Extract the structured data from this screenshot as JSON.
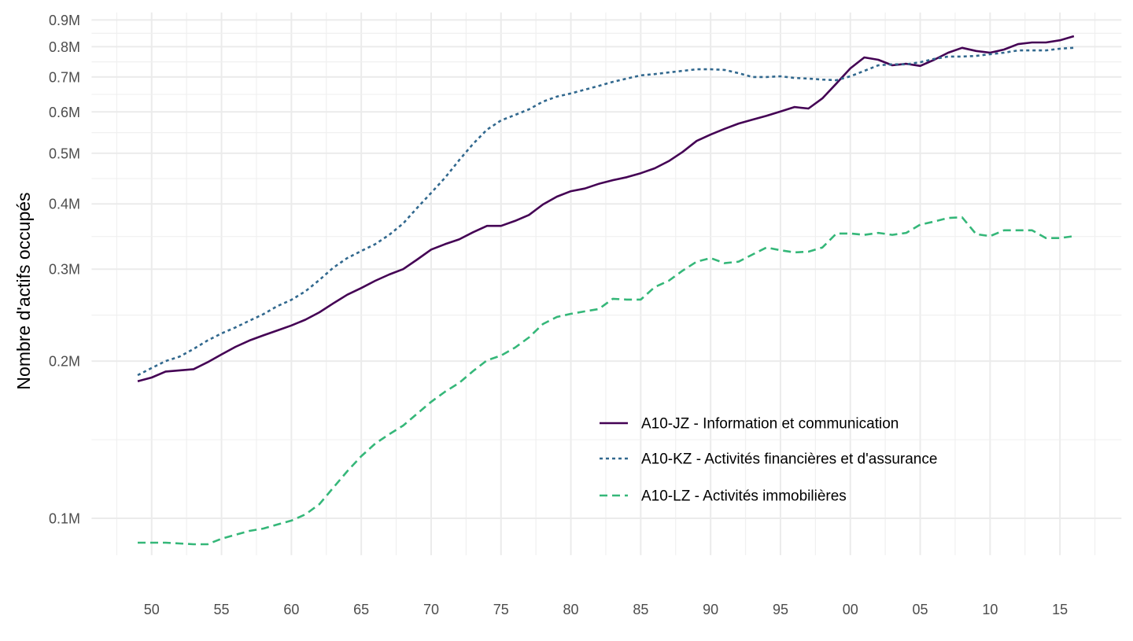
{
  "chart_data": {
    "type": "line",
    "title": "",
    "xlabel": "",
    "ylabel": "Nombre d'actifs occupés",
    "yscale": "log",
    "ylim": [
      0.085,
      0.93
    ],
    "xlim": [
      1945.7,
      2019.4
    ],
    "grid": true,
    "legend_position": "bottom-right (inside)",
    "x_ticks": [
      1950,
      1955,
      1960,
      1965,
      1970,
      1975,
      1980,
      1985,
      1990,
      1995,
      2000,
      2005,
      2010,
      2015
    ],
    "x_tick_labels": [
      "50",
      "55",
      "60",
      "65",
      "70",
      "75",
      "80",
      "85",
      "90",
      "95",
      "00",
      "05",
      "10",
      "15"
    ],
    "y_ticks": [
      0.1,
      0.2,
      0.3,
      0.4,
      0.5,
      0.6,
      0.7,
      0.8,
      0.9
    ],
    "y_tick_labels": [
      "0.1M",
      "0.2M",
      "0.3M",
      "0.4M",
      "0.5M",
      "0.6M",
      "0.7M",
      "0.8M",
      "0.9M"
    ],
    "x_start": 1949,
    "series": [
      {
        "name": "A10-JZ - Information et communication",
        "color": "#440154",
        "dash": "solid",
        "values": [
          0.183,
          0.186,
          0.191,
          0.192,
          0.193,
          0.199,
          0.206,
          0.213,
          0.219,
          0.224,
          0.229,
          0.234,
          0.24,
          0.248,
          0.258,
          0.268,
          0.276,
          0.285,
          0.293,
          0.3,
          0.313,
          0.327,
          0.335,
          0.342,
          0.353,
          0.363,
          0.363,
          0.371,
          0.381,
          0.399,
          0.413,
          0.423,
          0.428,
          0.437,
          0.444,
          0.45,
          0.458,
          0.468,
          0.483,
          0.503,
          0.528,
          0.543,
          0.557,
          0.57,
          0.58,
          0.59,
          0.601,
          0.613,
          0.609,
          0.637,
          0.68,
          0.727,
          0.763,
          0.755,
          0.737,
          0.742,
          0.735,
          0.755,
          0.779,
          0.796,
          0.785,
          0.779,
          0.79,
          0.809,
          0.815,
          0.815,
          0.823,
          0.838
        ]
      },
      {
        "name": "A10-KZ - Activités financières et d'assurance",
        "color": "#31688e",
        "dash": "dotted",
        "values": [
          0.188,
          0.194,
          0.2,
          0.204,
          0.211,
          0.219,
          0.226,
          0.232,
          0.239,
          0.246,
          0.255,
          0.262,
          0.272,
          0.286,
          0.302,
          0.315,
          0.325,
          0.335,
          0.349,
          0.367,
          0.393,
          0.42,
          0.449,
          0.485,
          0.521,
          0.555,
          0.578,
          0.592,
          0.607,
          0.628,
          0.642,
          0.651,
          0.662,
          0.673,
          0.685,
          0.695,
          0.705,
          0.709,
          0.714,
          0.719,
          0.724,
          0.724,
          0.722,
          0.712,
          0.7,
          0.7,
          0.702,
          0.697,
          0.695,
          0.692,
          0.69,
          0.702,
          0.719,
          0.737,
          0.74,
          0.74,
          0.747,
          0.758,
          0.766,
          0.766,
          0.768,
          0.774,
          0.779,
          0.787,
          0.787,
          0.787,
          0.793,
          0.796
        ]
      },
      {
        "name": "A10-LZ - Activités immobilières",
        "color": "#35b779",
        "dash": "dashed",
        "values": [
          0.0898,
          0.0898,
          0.0898,
          0.0895,
          0.0892,
          0.0892,
          0.0914,
          0.093,
          0.0946,
          0.0956,
          0.0973,
          0.099,
          0.1017,
          0.1064,
          0.1145,
          0.1231,
          0.1315,
          0.139,
          0.1449,
          0.1505,
          0.1586,
          0.1671,
          0.1748,
          0.1816,
          0.1913,
          0.2007,
          0.2049,
          0.2122,
          0.222,
          0.2355,
          0.243,
          0.2464,
          0.249,
          0.2516,
          0.2632,
          0.2623,
          0.2623,
          0.2772,
          0.285,
          0.298,
          0.31,
          0.315,
          0.308,
          0.31,
          0.32,
          0.33,
          0.326,
          0.323,
          0.324,
          0.33,
          0.351,
          0.351,
          0.349,
          0.352,
          0.349,
          0.352,
          0.365,
          0.37,
          0.376,
          0.377,
          0.35,
          0.347,
          0.356,
          0.356,
          0.356,
          0.344,
          0.344,
          0.347
        ]
      }
    ]
  }
}
